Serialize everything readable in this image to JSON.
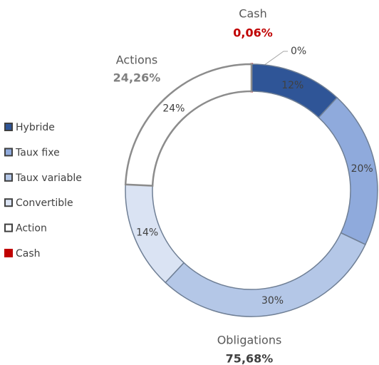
{
  "chart_data": {
    "type": "donut",
    "categories": [
      "Hybride",
      "Taux fixe",
      "Taux variable",
      "Convertible",
      "Action",
      "Cash"
    ],
    "values": [
      11.8,
      20.2,
      29.9,
      13.78,
      24.26,
      0.06
    ],
    "value_labels": [
      "12%",
      "20%",
      "30%",
      "14%",
      "24%",
      "0%"
    ],
    "colors": [
      "#2f5597",
      "#8faadc",
      "#b4c7e7",
      "#dae3f3",
      "#ffffff",
      "#c00000"
    ],
    "annotations": [
      {
        "title": "Cash",
        "value": "0,06%",
        "color": "#c00000"
      },
      {
        "title": "Actions",
        "value": "24,26%",
        "color": "#7f7f7f"
      },
      {
        "title": "Obligations",
        "value": "75,68%",
        "color": "#404040"
      }
    ]
  }
}
